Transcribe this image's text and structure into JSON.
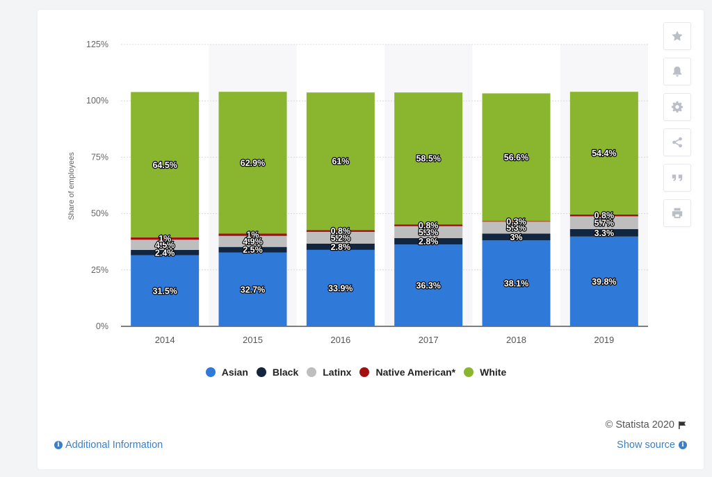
{
  "chart_data": {
    "type": "bar",
    "stacked": true,
    "title": "",
    "xlabel": "",
    "ylabel": "Share of employees",
    "ylim": [
      0,
      125
    ],
    "yticks": [
      "0%",
      "25%",
      "50%",
      "75%",
      "100%",
      "125%"
    ],
    "categories": [
      "2014",
      "2015",
      "2016",
      "2017",
      "2018",
      "2019"
    ],
    "series": [
      {
        "name": "Asian",
        "color": "#2f79d9",
        "values": [
          31.5,
          32.7,
          33.9,
          36.3,
          38.1,
          39.8
        ],
        "labels": [
          "31.5%",
          "32.7%",
          "33.9%",
          "36.3%",
          "38.1%",
          "39.8%"
        ]
      },
      {
        "name": "Black",
        "color": "#13263f",
        "values": [
          2.4,
          2.5,
          2.8,
          2.8,
          3,
          3.3
        ],
        "labels": [
          "2.4%",
          "2.5%",
          "2.8%",
          "2.8%",
          "3%",
          "3.3%"
        ]
      },
      {
        "name": "Latinx",
        "color": "#bebebe",
        "values": [
          4.5,
          4.9,
          5.2,
          5.3,
          5.3,
          5.7
        ],
        "labels": [
          "4.5%",
          "4.9%",
          "5.2%",
          "5.3%",
          "5.3%",
          "5.7%"
        ]
      },
      {
        "name": "Native American*",
        "color": "#a30f10",
        "values": [
          1,
          1,
          0.8,
          0.8,
          0.3,
          0.8
        ],
        "labels": [
          "1%",
          "1%",
          "0.8%",
          "0.8%",
          "0.3%",
          "0.8%"
        ]
      },
      {
        "name": "White",
        "color": "#8ab62f",
        "values": [
          64.5,
          62.9,
          61,
          58.5,
          56.6,
          54.4
        ],
        "labels": [
          "64.5%",
          "62.9%",
          "61%",
          "58.5%",
          "56.6%",
          "54.4%"
        ]
      }
    ],
    "grid": true,
    "legend_position": "bottom-center"
  },
  "footer": {
    "additional_info": "Additional Information",
    "credit": "© Statista 2020",
    "show_source": "Show source"
  },
  "toolbar": {
    "icons": [
      "star-icon",
      "bell-icon",
      "gear-icon",
      "share-icon",
      "quote-icon",
      "print-icon"
    ]
  }
}
